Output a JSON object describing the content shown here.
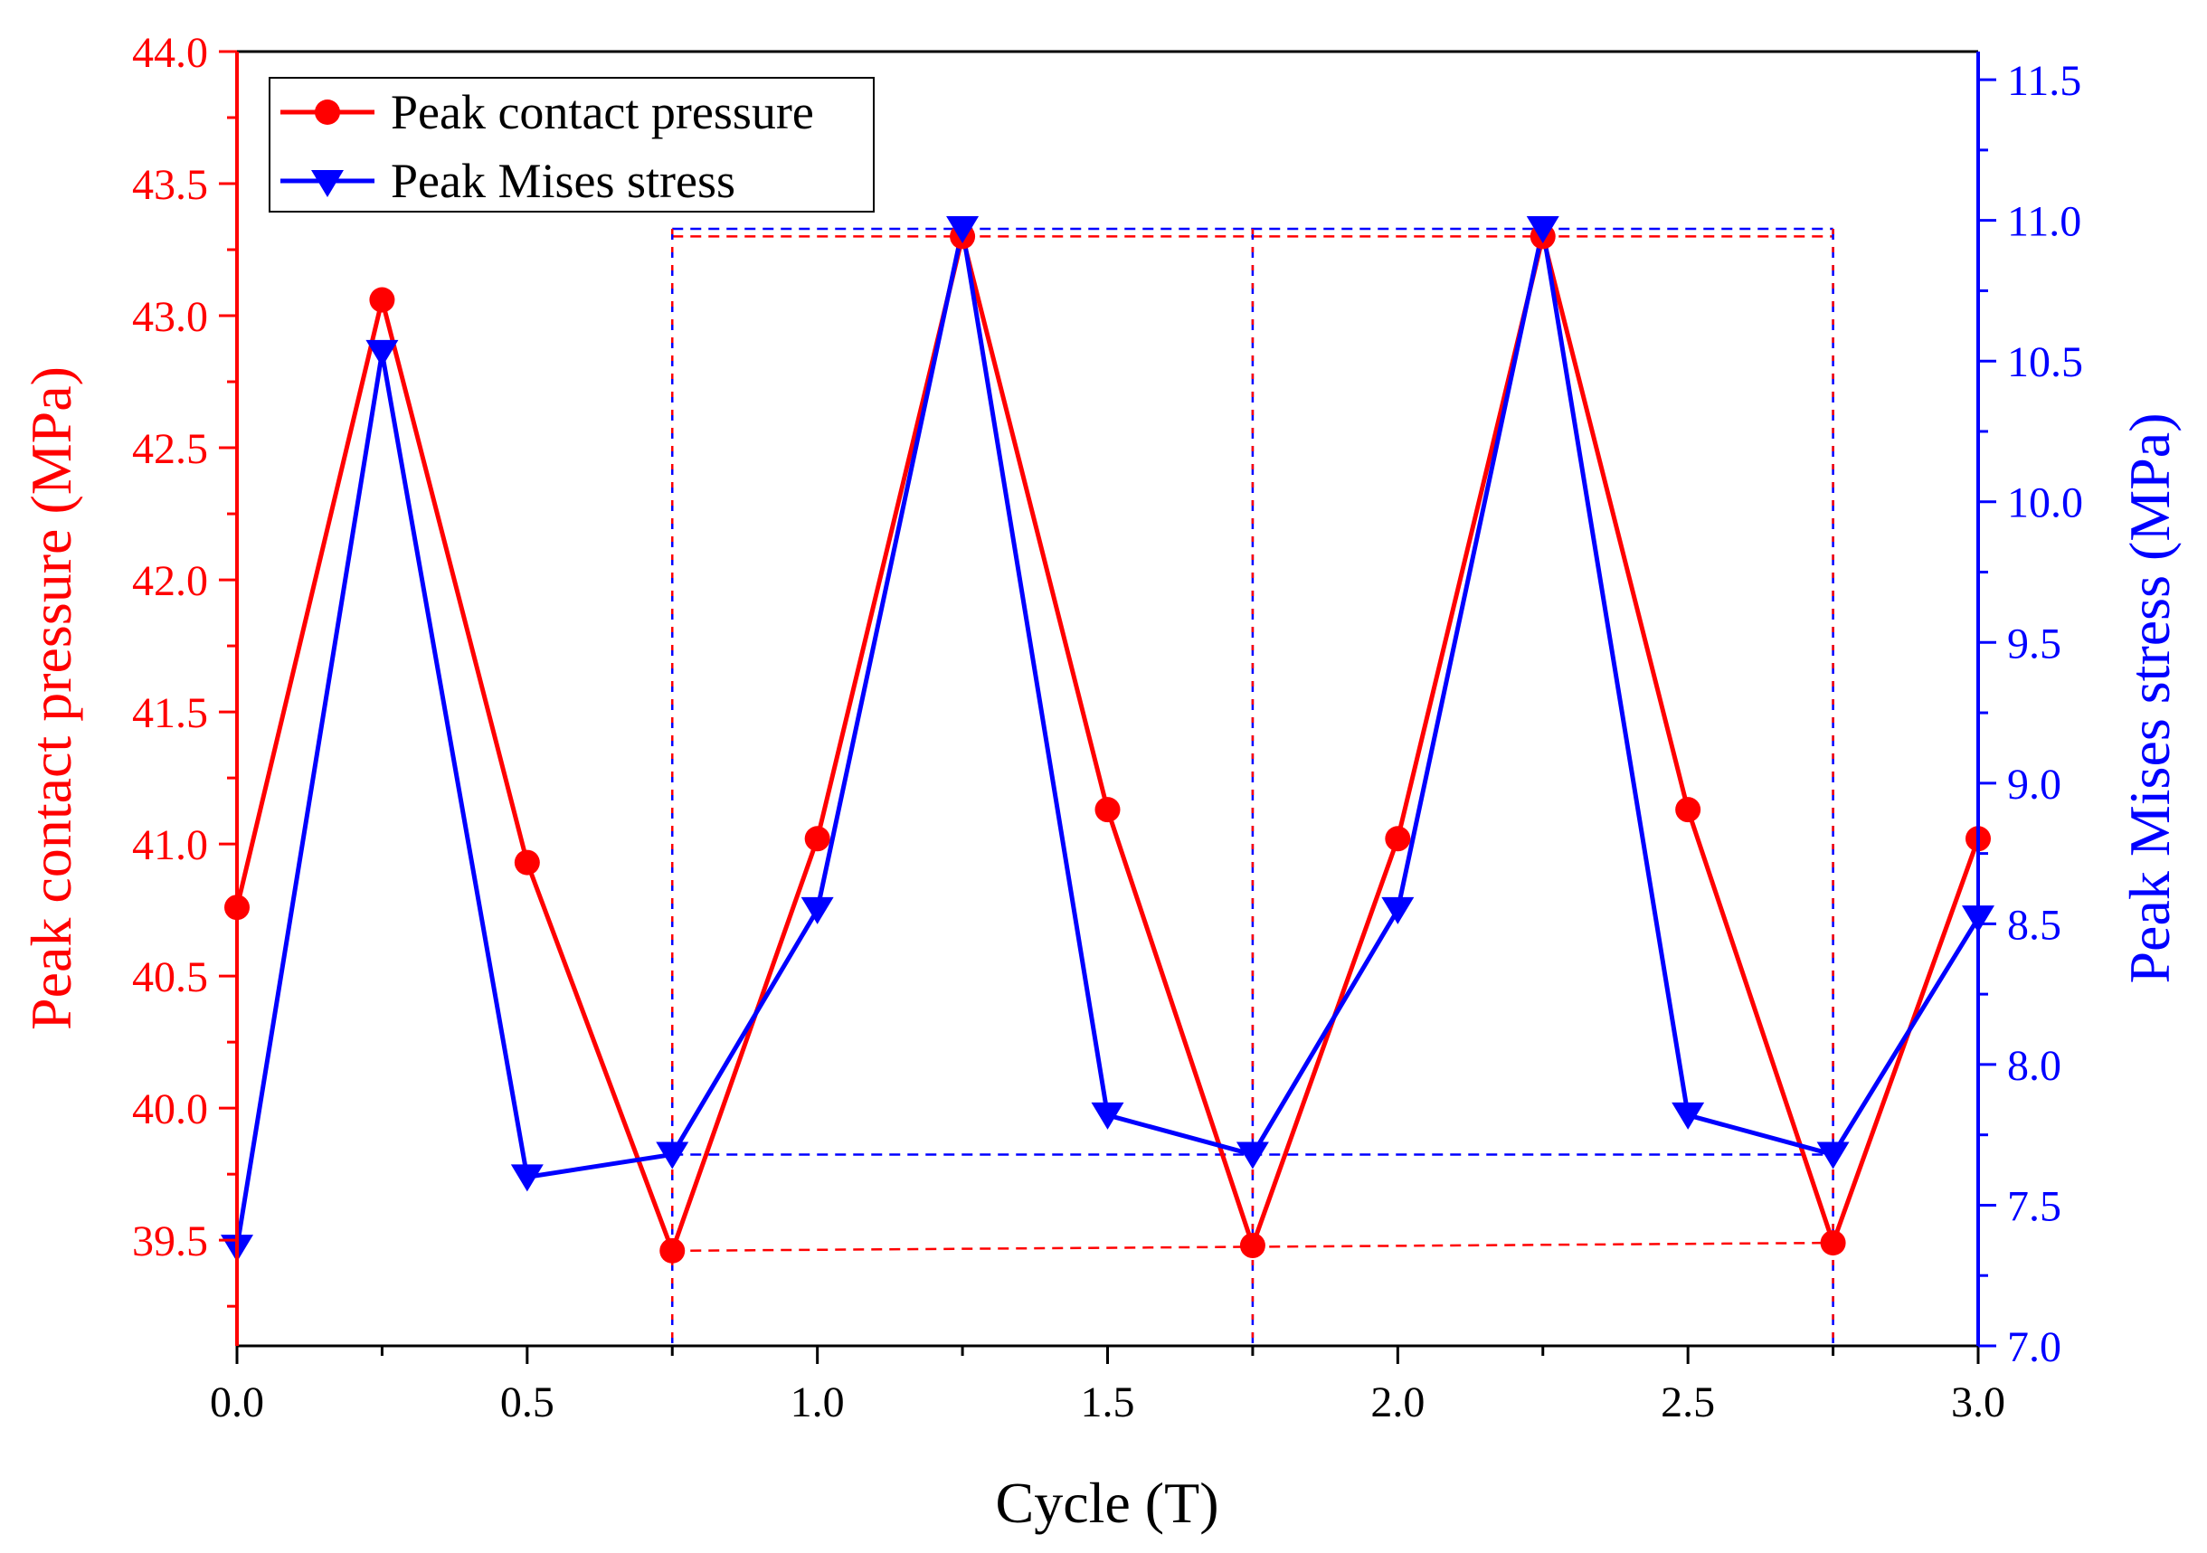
{
  "chart_data": {
    "type": "line",
    "title": "",
    "xlabel": "Cycle (T)",
    "ylabel": "Peak contact pressure (MPa)",
    "y2label": "Peak Mises stress (MPa)",
    "xlim": [
      0.0,
      3.0
    ],
    "ylim": [
      39.1,
      44.0
    ],
    "y2lim": [
      7.0,
      11.6
    ],
    "xticks": [
      "0.0",
      "0.5",
      "1.0",
      "1.5",
      "2.0",
      "2.5",
      "3.0"
    ],
    "yticks": [
      "39.5",
      "40.0",
      "40.5",
      "41.0",
      "41.5",
      "42.0",
      "42.5",
      "43.0",
      "43.5",
      "44.0"
    ],
    "y2ticks": [
      "7.0",
      "7.5",
      "8.0",
      "8.5",
      "9.0",
      "9.5",
      "10.0",
      "10.5",
      "11.0",
      "11.5"
    ],
    "legend_position": "top-left",
    "x": [
      0.0,
      0.25,
      0.5,
      0.75,
      1.0,
      1.25,
      1.5,
      1.75,
      2.0,
      2.25,
      2.5,
      2.75,
      3.0
    ],
    "series": [
      {
        "name": "Peak contact pressure",
        "axis": "left",
        "color": "#ff0000",
        "marker": "circle",
        "values": [
          40.76,
          43.06,
          40.93,
          39.46,
          41.02,
          43.3,
          41.13,
          39.48,
          41.02,
          43.3,
          41.13,
          39.49,
          41.02
        ]
      },
      {
        "name": "Peak Mises stress",
        "axis": "right",
        "color": "#0000ff",
        "marker": "triangle-down",
        "values": [
          7.35,
          10.53,
          7.6,
          7.68,
          8.55,
          10.97,
          7.82,
          7.68,
          8.55,
          10.97,
          7.82,
          7.68,
          8.52
        ]
      }
    ],
    "annotations": {
      "red_dashed_top": 43.3,
      "red_dashed_bottom": [
        [
          0.75,
          39.46
        ],
        [
          2.75,
          39.49
        ]
      ],
      "blue_dashed_top": 10.97,
      "blue_dashed_bottom": 7.68,
      "vertical_lines_x": [
        0.75,
        1.75,
        2.75
      ]
    }
  }
}
